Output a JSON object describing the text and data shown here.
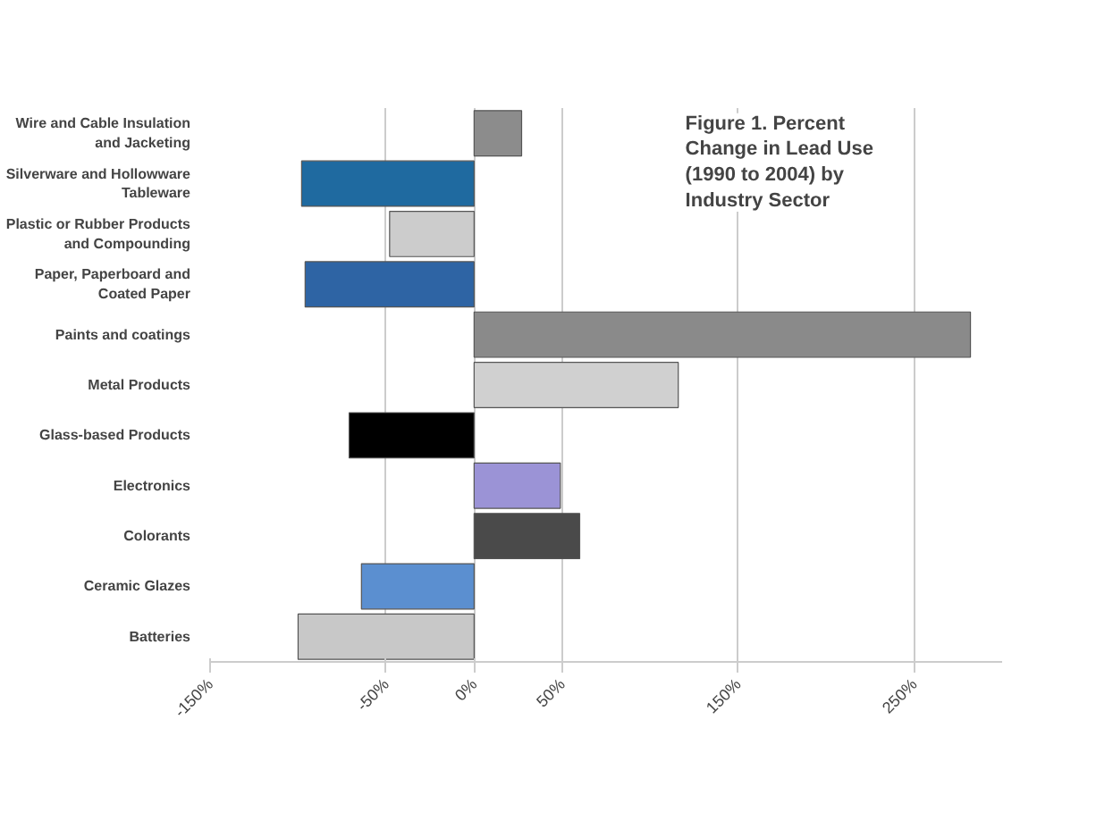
{
  "chart_data": {
    "type": "bar",
    "orientation": "horizontal",
    "title": "Figure 1.  Percent Change in Lead Use (1990 to 2004) by Industry Sector",
    "categories": [
      "Wire and Cable Insulation and Jacketing",
      "Silverware and Hollowware Tableware",
      "Plastic or Rubber Products and Compounding",
      "Paper, Paperboard and Coated Paper",
      "Paints and coatings",
      "Metal Products",
      "Glass-based Products",
      "Electronics",
      "Colorants",
      "Ceramic Glazes",
      "Batteries"
    ],
    "values": [
      27,
      -98,
      -48,
      -96,
      282,
      116,
      -71,
      49,
      60,
      -64,
      -100
    ],
    "colors": [
      "#8c8c8c",
      "#1f6aa0",
      "#cccccc",
      "#2e64a4",
      "#8a8a8a",
      "#d0d0d0",
      "#000000",
      "#9b93d6",
      "#4a4a4a",
      "#5b8fd0",
      "#c8c8c8"
    ],
    "xlim": [
      -150,
      300
    ],
    "xticks": [
      {
        "value": -150,
        "label": "-150%"
      },
      {
        "value": -50,
        "label": "-50%"
      },
      {
        "value": 0,
        "label": "0%"
      },
      {
        "value": 50,
        "label": "50%"
      },
      {
        "value": 150,
        "label": "150%"
      },
      {
        "value": 250,
        "label": "250%"
      }
    ],
    "grid": "x"
  }
}
